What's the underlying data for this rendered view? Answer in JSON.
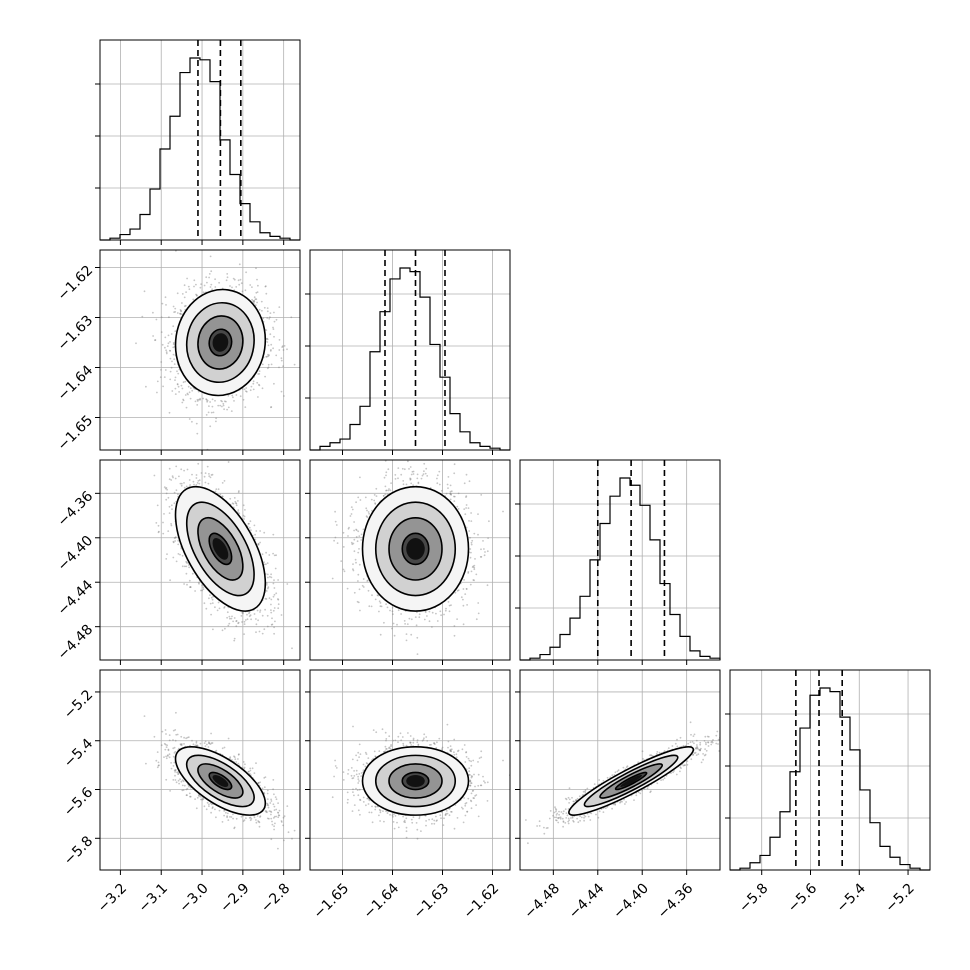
{
  "chart_data": {
    "type": "corner",
    "parameters": 4,
    "grid": true,
    "colors": {
      "line": "#000000",
      "grid": "#b0b0b0",
      "points": "#808080"
    },
    "axes": [
      {
        "range": [
          -3.25,
          -2.76
        ],
        "ticks": [
          -3.2,
          -3.1,
          -3.0,
          -2.9,
          -2.8
        ],
        "tick_labels": [
          "−3.2",
          "−3.1",
          "−3.0",
          "−2.9",
          "−2.8"
        ],
        "quantiles": [
          -3.01,
          -2.955,
          -2.905
        ]
      },
      {
        "range": [
          -1.6565,
          -1.6165
        ],
        "ticks": [
          -1.65,
          -1.64,
          -1.63,
          -1.62
        ],
        "tick_labels": [
          "−1.65",
          "−1.64",
          "−1.63",
          "−1.62"
        ],
        "quantiles": [
          -1.6415,
          -1.6354,
          -1.6295
        ]
      },
      {
        "range": [
          -4.51,
          -4.33
        ],
        "ticks": [
          -4.48,
          -4.44,
          -4.4,
          -4.36
        ],
        "tick_labels": [
          "−4.48",
          "−4.44",
          "−4.40",
          "−4.36"
        ],
        "quantiles": [
          -4.44,
          -4.41,
          -4.38
        ]
      },
      {
        "range": [
          -5.93,
          -5.11
        ],
        "ticks": [
          -5.8,
          -5.6,
          -5.4,
          -5.2
        ],
        "tick_labels": [
          "−5.8",
          "−5.6",
          "−5.4",
          "−5.2"
        ],
        "quantiles": [
          -5.66,
          -5.565,
          -5.47
        ]
      }
    ],
    "histograms": [
      [
        0.0,
        0.01,
        0.03,
        0.06,
        0.14,
        0.28,
        0.5,
        0.68,
        0.92,
        1.0,
        0.99,
        0.87,
        0.55,
        0.36,
        0.2,
        0.1,
        0.04,
        0.02,
        0.01,
        0.0
      ],
      [
        0.0,
        0.02,
        0.04,
        0.06,
        0.14,
        0.24,
        0.54,
        0.76,
        0.94,
        1.0,
        0.98,
        0.84,
        0.58,
        0.4,
        0.2,
        0.1,
        0.04,
        0.02,
        0.01,
        0.0
      ],
      [
        0.0,
        0.01,
        0.03,
        0.07,
        0.14,
        0.23,
        0.35,
        0.55,
        0.75,
        0.9,
        1.0,
        0.96,
        0.85,
        0.66,
        0.42,
        0.25,
        0.13,
        0.05,
        0.02,
        0.01
      ],
      [
        0.0,
        0.01,
        0.04,
        0.08,
        0.18,
        0.32,
        0.54,
        0.78,
        0.96,
        1.0,
        0.98,
        0.84,
        0.66,
        0.44,
        0.26,
        0.13,
        0.07,
        0.03,
        0.01,
        0.0
      ]
    ],
    "pairs": [
      {
        "x": 0,
        "y": 1,
        "center": [
          -2.955,
          -1.635
        ],
        "sd": [
          0.055,
          0.0053
        ],
        "rho": 0.05
      },
      {
        "x": 0,
        "y": 2,
        "center": [
          -2.955,
          -4.41
        ],
        "sd": [
          0.055,
          0.028
        ],
        "rho": -0.55
      },
      {
        "x": 1,
        "y": 2,
        "center": [
          -1.6354,
          -4.41
        ],
        "sd": [
          0.0053,
          0.028
        ],
        "rho": 0.0
      },
      {
        "x": 0,
        "y": 3,
        "center": [
          -2.955,
          -5.565
        ],
        "sd": [
          0.055,
          0.07
        ],
        "rho": -0.65
      },
      {
        "x": 1,
        "y": 3,
        "center": [
          -1.6354,
          -5.565
        ],
        "sd": [
          0.0053,
          0.07
        ],
        "rho": 0.0
      },
      {
        "x": 2,
        "y": 3,
        "center": [
          -4.41,
          -5.565
        ],
        "sd": [
          0.028,
          0.07
        ],
        "rho": 0.92
      }
    ],
    "contour_levels_sigma": [
      0.5,
      1.0,
      1.5,
      2.0
    ]
  }
}
